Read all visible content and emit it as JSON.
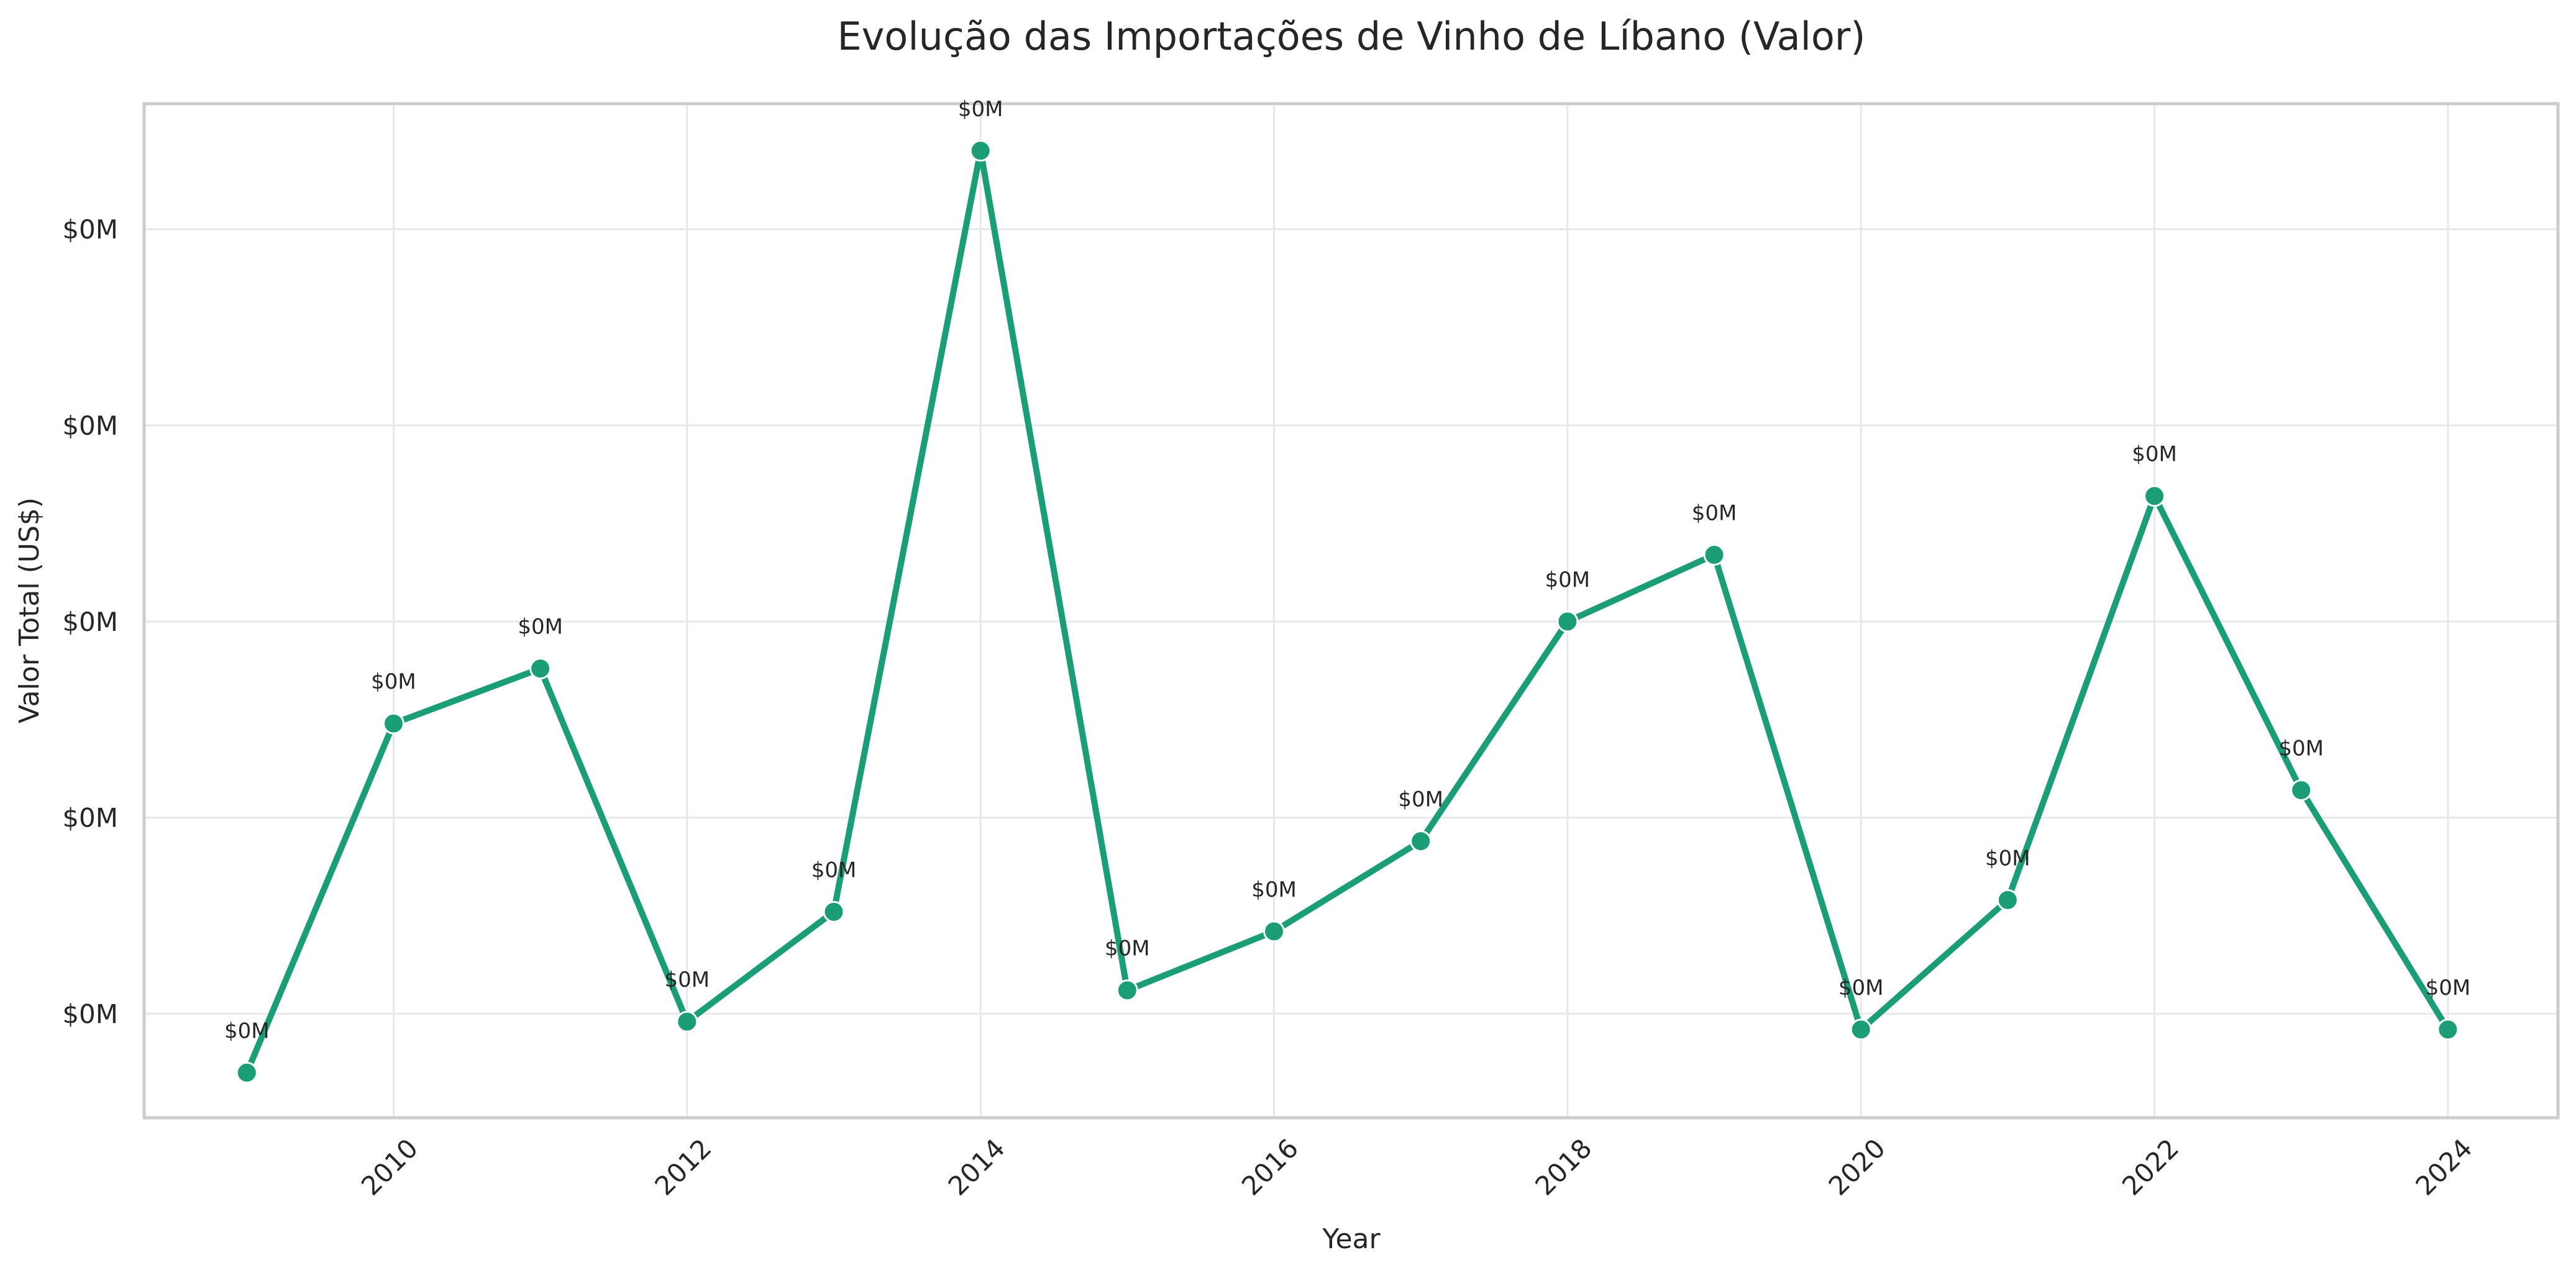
{
  "chart_data": {
    "type": "line",
    "title": "Evolução das Importações de Vinho de Líbano (Valor)",
    "xlabel": "Year",
    "ylabel": "Valor Total (US$)",
    "x": [
      2009,
      2010,
      2011,
      2012,
      2013,
      2014,
      2015,
      2016,
      2017,
      2018,
      2019,
      2020,
      2021,
      2022,
      2023,
      2024
    ],
    "series": [
      {
        "values": [
          -0.15,
          0.74,
          0.88,
          -0.02,
          0.26,
          2.2,
          0.06,
          0.21,
          0.44,
          1.0,
          1.17,
          -0.04,
          0.29,
          1.32,
          0.57,
          -0.04
        ],
        "point_labels": [
          "$0M",
          "$0M",
          "$0M",
          "$0M",
          "$0M",
          "$0M",
          "$0M",
          "$0M",
          "$0M",
          "$0M",
          "$0M",
          "$0M",
          "$0M",
          "$0M",
          "$0M",
          "$0M"
        ]
      }
    ],
    "xlim": [
      2008.3,
      2024.75
    ],
    "ylim": [
      -0.265,
      2.32
    ],
    "x_ticks": [
      2010,
      2012,
      2014,
      2016,
      2018,
      2020,
      2022,
      2024
    ],
    "y_ticks": [
      0,
      0.5,
      1.0,
      1.5,
      2.0
    ],
    "y_tick_labels": [
      "$0M",
      "$0M",
      "$0M",
      "$0M",
      "$0M"
    ],
    "grid": true,
    "colors": {
      "line": "#1b9e77",
      "marker_edge": "#ffffff"
    }
  }
}
